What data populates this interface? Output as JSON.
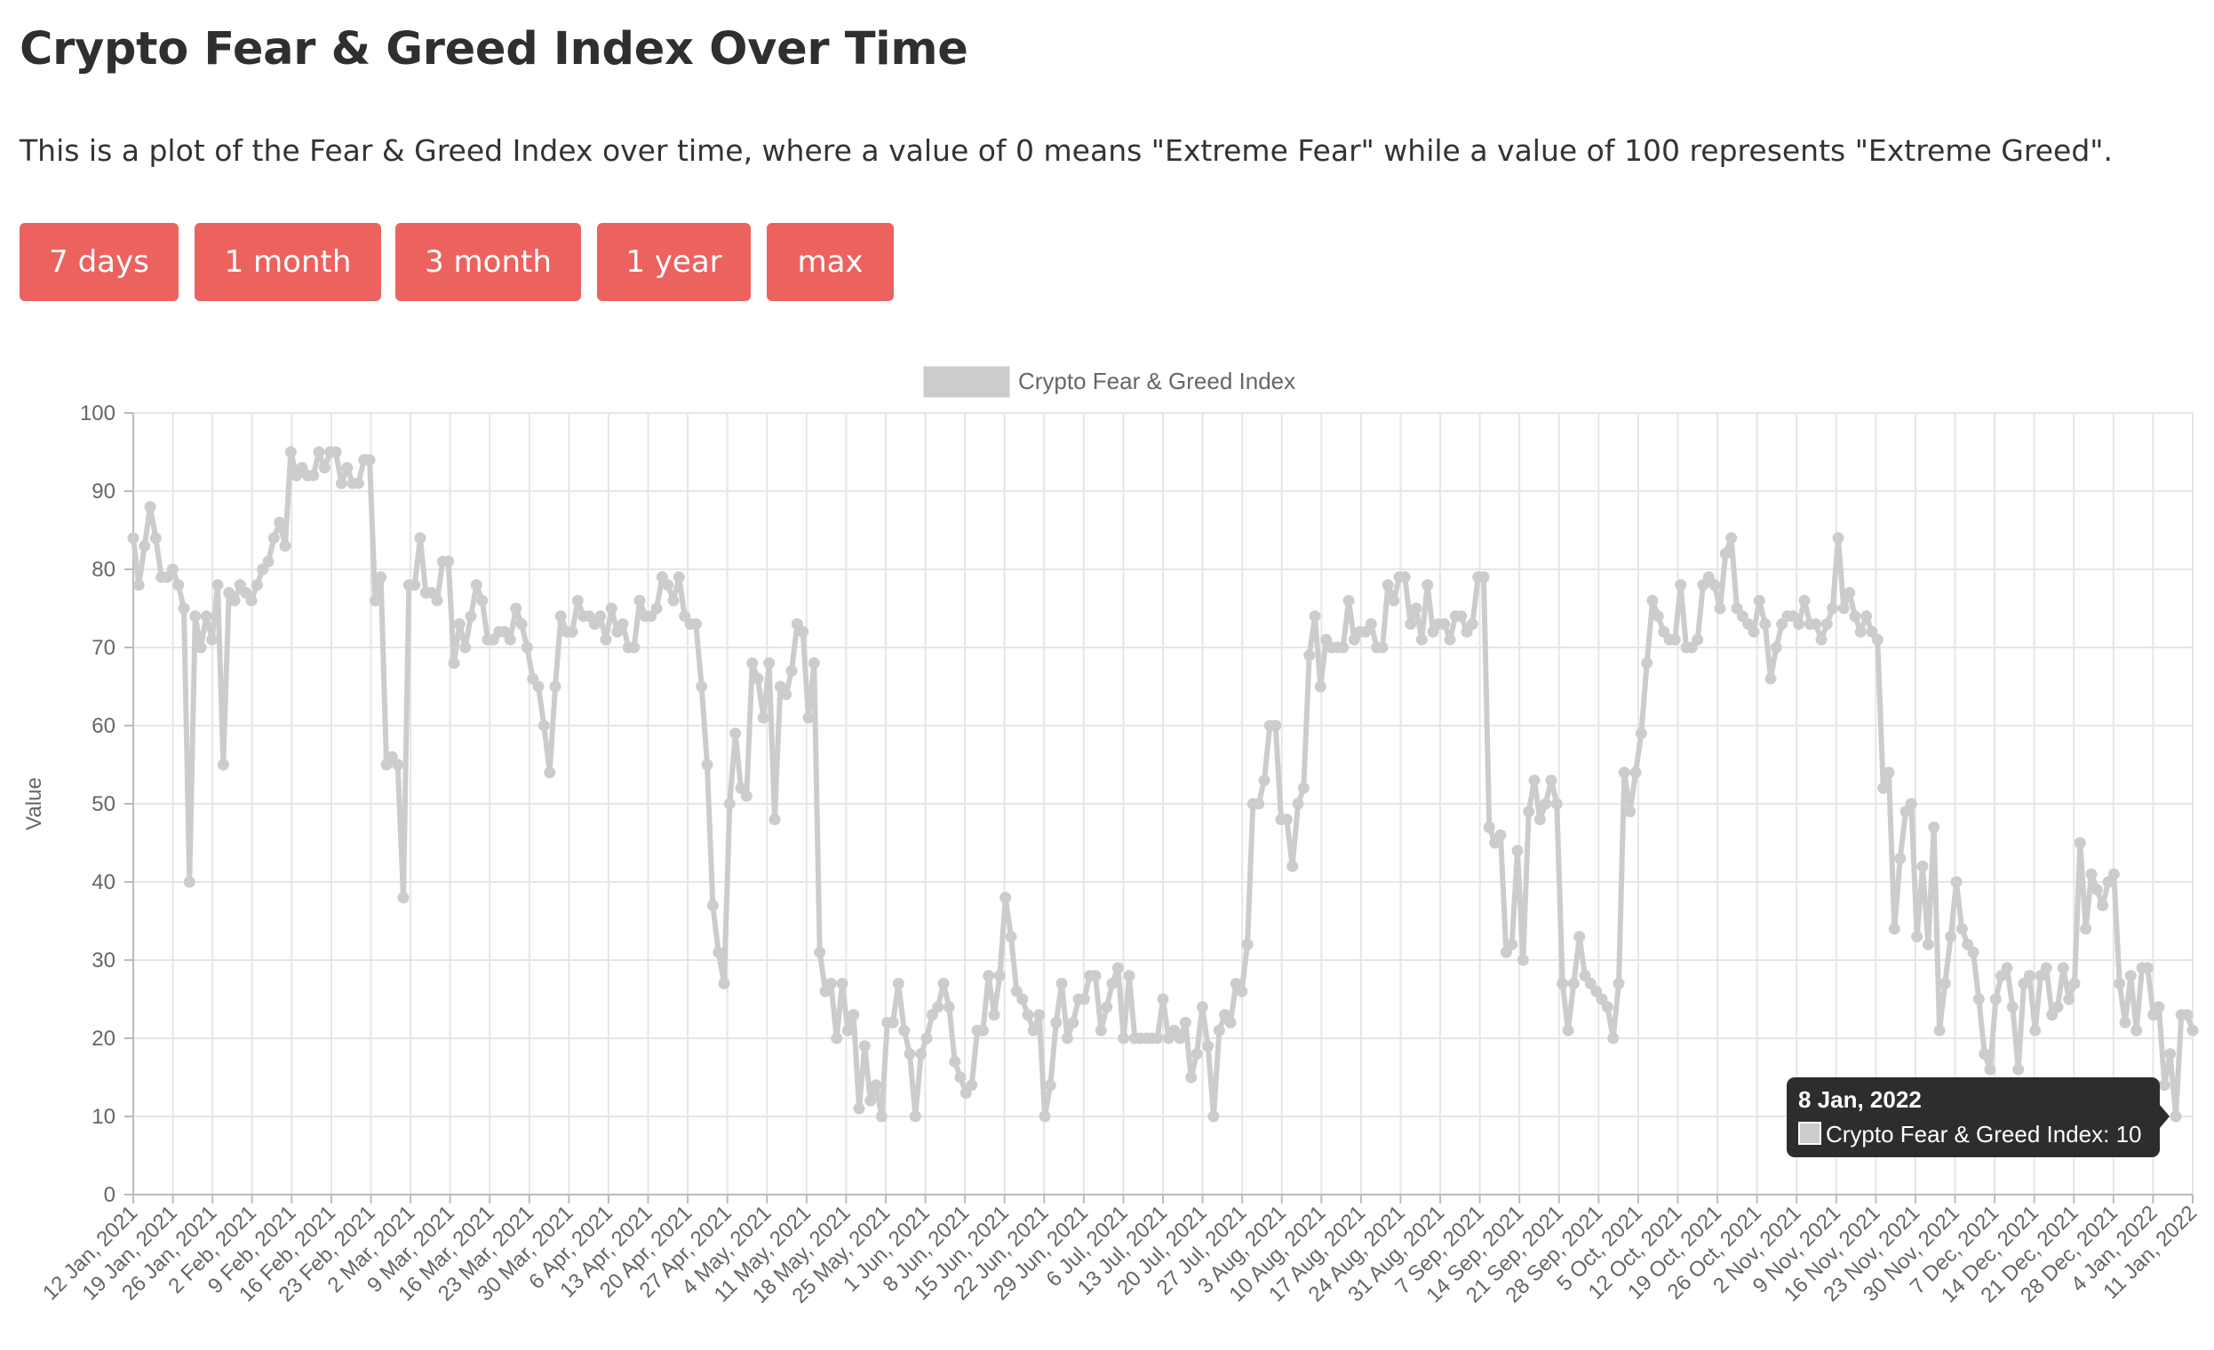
{
  "page": {
    "title": "Crypto Fear & Greed Index Over Time",
    "description": "This is a plot of the Fear & Greed Index over time, where a value of 0 means \"Extreme Fear\" while a value of 100 represents \"Extreme Greed\".",
    "buttons": [
      "7 days",
      "1 month",
      "3 month",
      "1 year",
      "max"
    ]
  },
  "colors": {
    "button": "#ec625f",
    "series": "#cccccc",
    "grid": "#e6e6e6",
    "tooltip_bg": "#222222"
  },
  "tooltip": {
    "date": "8 Jan, 2022",
    "label": "Crypto Fear & Greed Index: 10"
  },
  "chart_data": {
    "type": "line",
    "ylabel": "Value",
    "ylim": [
      0,
      100
    ],
    "yticks": [
      0,
      10,
      20,
      30,
      40,
      50,
      60,
      70,
      80,
      90,
      100
    ],
    "grid": true,
    "legend_position": "top",
    "x_start": "12 Jan, 2021",
    "x_end": "11 Jan, 2022",
    "x_ticks": [
      "12 Jan, 2021",
      "19 Jan, 2021",
      "26 Jan, 2021",
      "2 Feb, 2021",
      "9 Feb, 2021",
      "16 Feb, 2021",
      "23 Feb, 2021",
      "2 Mar, 2021",
      "9 Mar, 2021",
      "16 Mar, 2021",
      "23 Mar, 2021",
      "30 Mar, 2021",
      "6 Apr, 2021",
      "13 Apr, 2021",
      "20 Apr, 2021",
      "27 Apr, 2021",
      "4 May, 2021",
      "11 May, 2021",
      "18 May, 2021",
      "25 May, 2021",
      "1 Jun, 2021",
      "8 Jun, 2021",
      "15 Jun, 2021",
      "22 Jun, 2021",
      "29 Jun, 2021",
      "6 Jul, 2021",
      "13 Jul, 2021",
      "20 Jul, 2021",
      "27 Jul, 2021",
      "3 Aug, 2021",
      "10 Aug, 2021",
      "17 Aug, 2021",
      "24 Aug, 2021",
      "31 Aug, 2021",
      "7 Sep, 2021",
      "14 Sep, 2021",
      "21 Sep, 2021",
      "28 Sep, 2021",
      "5 Oct, 2021",
      "12 Oct, 2021",
      "19 Oct, 2021",
      "26 Oct, 2021",
      "2 Nov, 2021",
      "9 Nov, 2021",
      "16 Nov, 2021",
      "23 Nov, 2021",
      "30 Nov, 2021",
      "7 Dec, 2021",
      "14 Dec, 2021",
      "21 Dec, 2021",
      "28 Dec, 2021",
      "4 Jan, 2022",
      "11 Jan, 2022"
    ],
    "series": [
      {
        "name": "Crypto Fear & Greed Index",
        "values": [
          84,
          78,
          83,
          88,
          84,
          79,
          79,
          80,
          78,
          75,
          40,
          74,
          70,
          74,
          71,
          78,
          55,
          77,
          76,
          78,
          77,
          76,
          78,
          80,
          81,
          84,
          86,
          83,
          95,
          92,
          93,
          92,
          92,
          95,
          93,
          95,
          95,
          91,
          93,
          91,
          91,
          94,
          94,
          76,
          79,
          55,
          56,
          55,
          38,
          78,
          78,
          84,
          77,
          77,
          76,
          81,
          81,
          68,
          73,
          70,
          74,
          78,
          76,
          71,
          71,
          72,
          72,
          71,
          75,
          73,
          70,
          66,
          65,
          60,
          54,
          65,
          74,
          72,
          72,
          76,
          74,
          74,
          73,
          74,
          71,
          75,
          72,
          73,
          70,
          70,
          76,
          74,
          74,
          75,
          79,
          78,
          76,
          79,
          74,
          73,
          73,
          65,
          55,
          37,
          31,
          27,
          50,
          59,
          52,
          51,
          68,
          66,
          61,
          68,
          48,
          65,
          64,
          67,
          73,
          72,
          61,
          68,
          31,
          26,
          27,
          20,
          27,
          21,
          23,
          11,
          19,
          12,
          14,
          10,
          22,
          22,
          27,
          21,
          18,
          10,
          18,
          20,
          23,
          24,
          27,
          24,
          17,
          15,
          13,
          14,
          21,
          21,
          28,
          23,
          28,
          38,
          33,
          26,
          25,
          23,
          21,
          23,
          10,
          14,
          22,
          27,
          20,
          22,
          25,
          25,
          28,
          28,
          21,
          24,
          27,
          29,
          20,
          28,
          20,
          20,
          20,
          20,
          20,
          25,
          20,
          21,
          20,
          22,
          15,
          18,
          24,
          19,
          10,
          21,
          23,
          22,
          27,
          26,
          32,
          50,
          50,
          53,
          60,
          60,
          48,
          48,
          42,
          50,
          52,
          69,
          74,
          65,
          71,
          70,
          70,
          70,
          76,
          71,
          72,
          72,
          73,
          70,
          70,
          78,
          76,
          79,
          79,
          73,
          75,
          71,
          78,
          72,
          73,
          73,
          71,
          74,
          74,
          72,
          73,
          79,
          79,
          47,
          45,
          46,
          31,
          32,
          44,
          30,
          49,
          53,
          48,
          50,
          53,
          50,
          27,
          21,
          27,
          33,
          28,
          27,
          26,
          25,
          24,
          20,
          27,
          54,
          49,
          54,
          59,
          68,
          76,
          74,
          72,
          71,
          71,
          78,
          70,
          70,
          71,
          78,
          79,
          78,
          75,
          82,
          84,
          75,
          74,
          73,
          72,
          76,
          73,
          66,
          70,
          73,
          74,
          74,
          73,
          76,
          73,
          73,
          71,
          73,
          75,
          84,
          75,
          77,
          74,
          72,
          74,
          72,
          71,
          52,
          54,
          34,
          43,
          49,
          50,
          33,
          42,
          32,
          47,
          21,
          27,
          33,
          40,
          34,
          32,
          31,
          25,
          18,
          16,
          25,
          28,
          29,
          24,
          16,
          27,
          28,
          21,
          28,
          29,
          23,
          24,
          29,
          25,
          27,
          45,
          34,
          41,
          39,
          37,
          40,
          41,
          27,
          22,
          28,
          21,
          29,
          29,
          23,
          24,
          14,
          18,
          10,
          23,
          23,
          21
        ]
      }
    ]
  }
}
